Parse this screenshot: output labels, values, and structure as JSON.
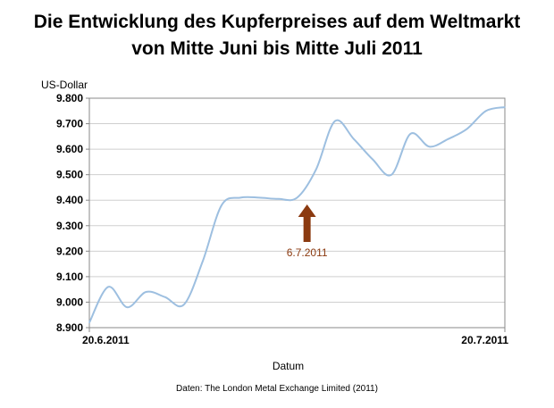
{
  "title_line1": "Die Entwicklung des Kupferpreises auf dem Weltmarkt",
  "title_line2": "von Mitte Juni bis Mitte Juli 2011",
  "source": "Daten: The London Metal Exchange Limited (2011)",
  "chart_data": {
    "type": "line",
    "ylabel": "US-Dollar",
    "xlabel": "Datum",
    "ylim": [
      8900,
      9800
    ],
    "ytick_values": [
      8900,
      9000,
      9100,
      9200,
      9300,
      9400,
      9500,
      9600,
      9700,
      9800
    ],
    "ytick_labels": [
      "8.900",
      "9.000",
      "9.100",
      "9.200",
      "9.300",
      "9.400",
      "9.500",
      "9.600",
      "9.700",
      "9.800"
    ],
    "xtick_labels": [
      "20.6.2011",
      "20.7.2011"
    ],
    "x": [
      "20.6.2011",
      "21.6.2011",
      "22.6.2011",
      "23.6.2011",
      "24.6.2011",
      "27.6.2011",
      "28.6.2011",
      "29.6.2011",
      "30.6.2011",
      "1.7.2011",
      "4.7.2011",
      "5.7.2011",
      "6.7.2011",
      "7.7.2011",
      "8.7.2011",
      "11.7.2011",
      "12.7.2011",
      "13.7.2011",
      "14.7.2011",
      "15.7.2011",
      "18.7.2011",
      "19.7.2011",
      "20.7.2011"
    ],
    "series": [
      {
        "values": [
          8920,
          9060,
          8980,
          9040,
          9020,
          8990,
          9160,
          9380,
          9410,
          9410,
          9405,
          9410,
          9520,
          9710,
          9640,
          9560,
          9500,
          9660,
          9610,
          9640,
          9680,
          9750,
          9765
        ],
        "color": "#9dbfe0"
      }
    ],
    "grid": true,
    "annotation": {
      "text": "6.7.2011",
      "x": "6.7.2011",
      "color": "#8b3a10",
      "arrow": "up"
    }
  }
}
